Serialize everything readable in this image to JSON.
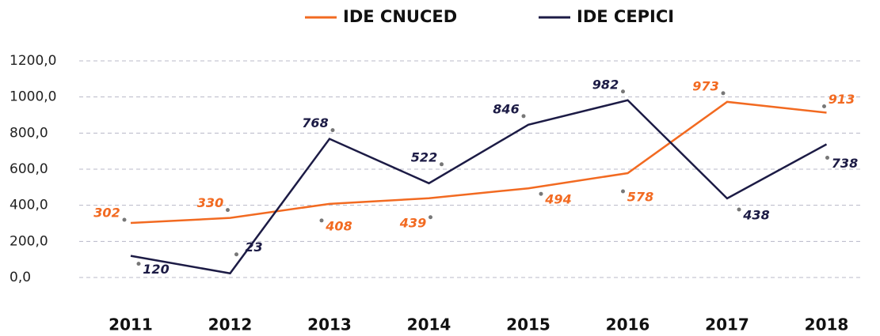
{
  "chart_data": {
    "type": "line",
    "categories": [
      "2011",
      "2012",
      "2013",
      "2014",
      "2015",
      "2016",
      "2017",
      "2018"
    ],
    "series": [
      {
        "name": "IDE CNUCED",
        "color": "#f26a21",
        "values": [
          302,
          330,
          408,
          439,
          494,
          578,
          973,
          913
        ]
      },
      {
        "name": "IDE CEPICI",
        "color": "#1c1b45",
        "values": [
          120,
          23,
          768,
          522,
          846,
          982,
          438,
          738
        ]
      }
    ],
    "ylim": [
      0,
      1200
    ],
    "yticks": [
      {
        "value": 0,
        "label": "0,0"
      },
      {
        "value": 200,
        "label": "200,0"
      },
      {
        "value": 400,
        "label": "400,0"
      },
      {
        "value": 600,
        "label": "600,0"
      },
      {
        "value": 800,
        "label": "800,0"
      },
      {
        "value": 1000,
        "label": "1000,0"
      },
      {
        "value": 1200,
        "label": "1200,0"
      }
    ],
    "grid": true
  }
}
